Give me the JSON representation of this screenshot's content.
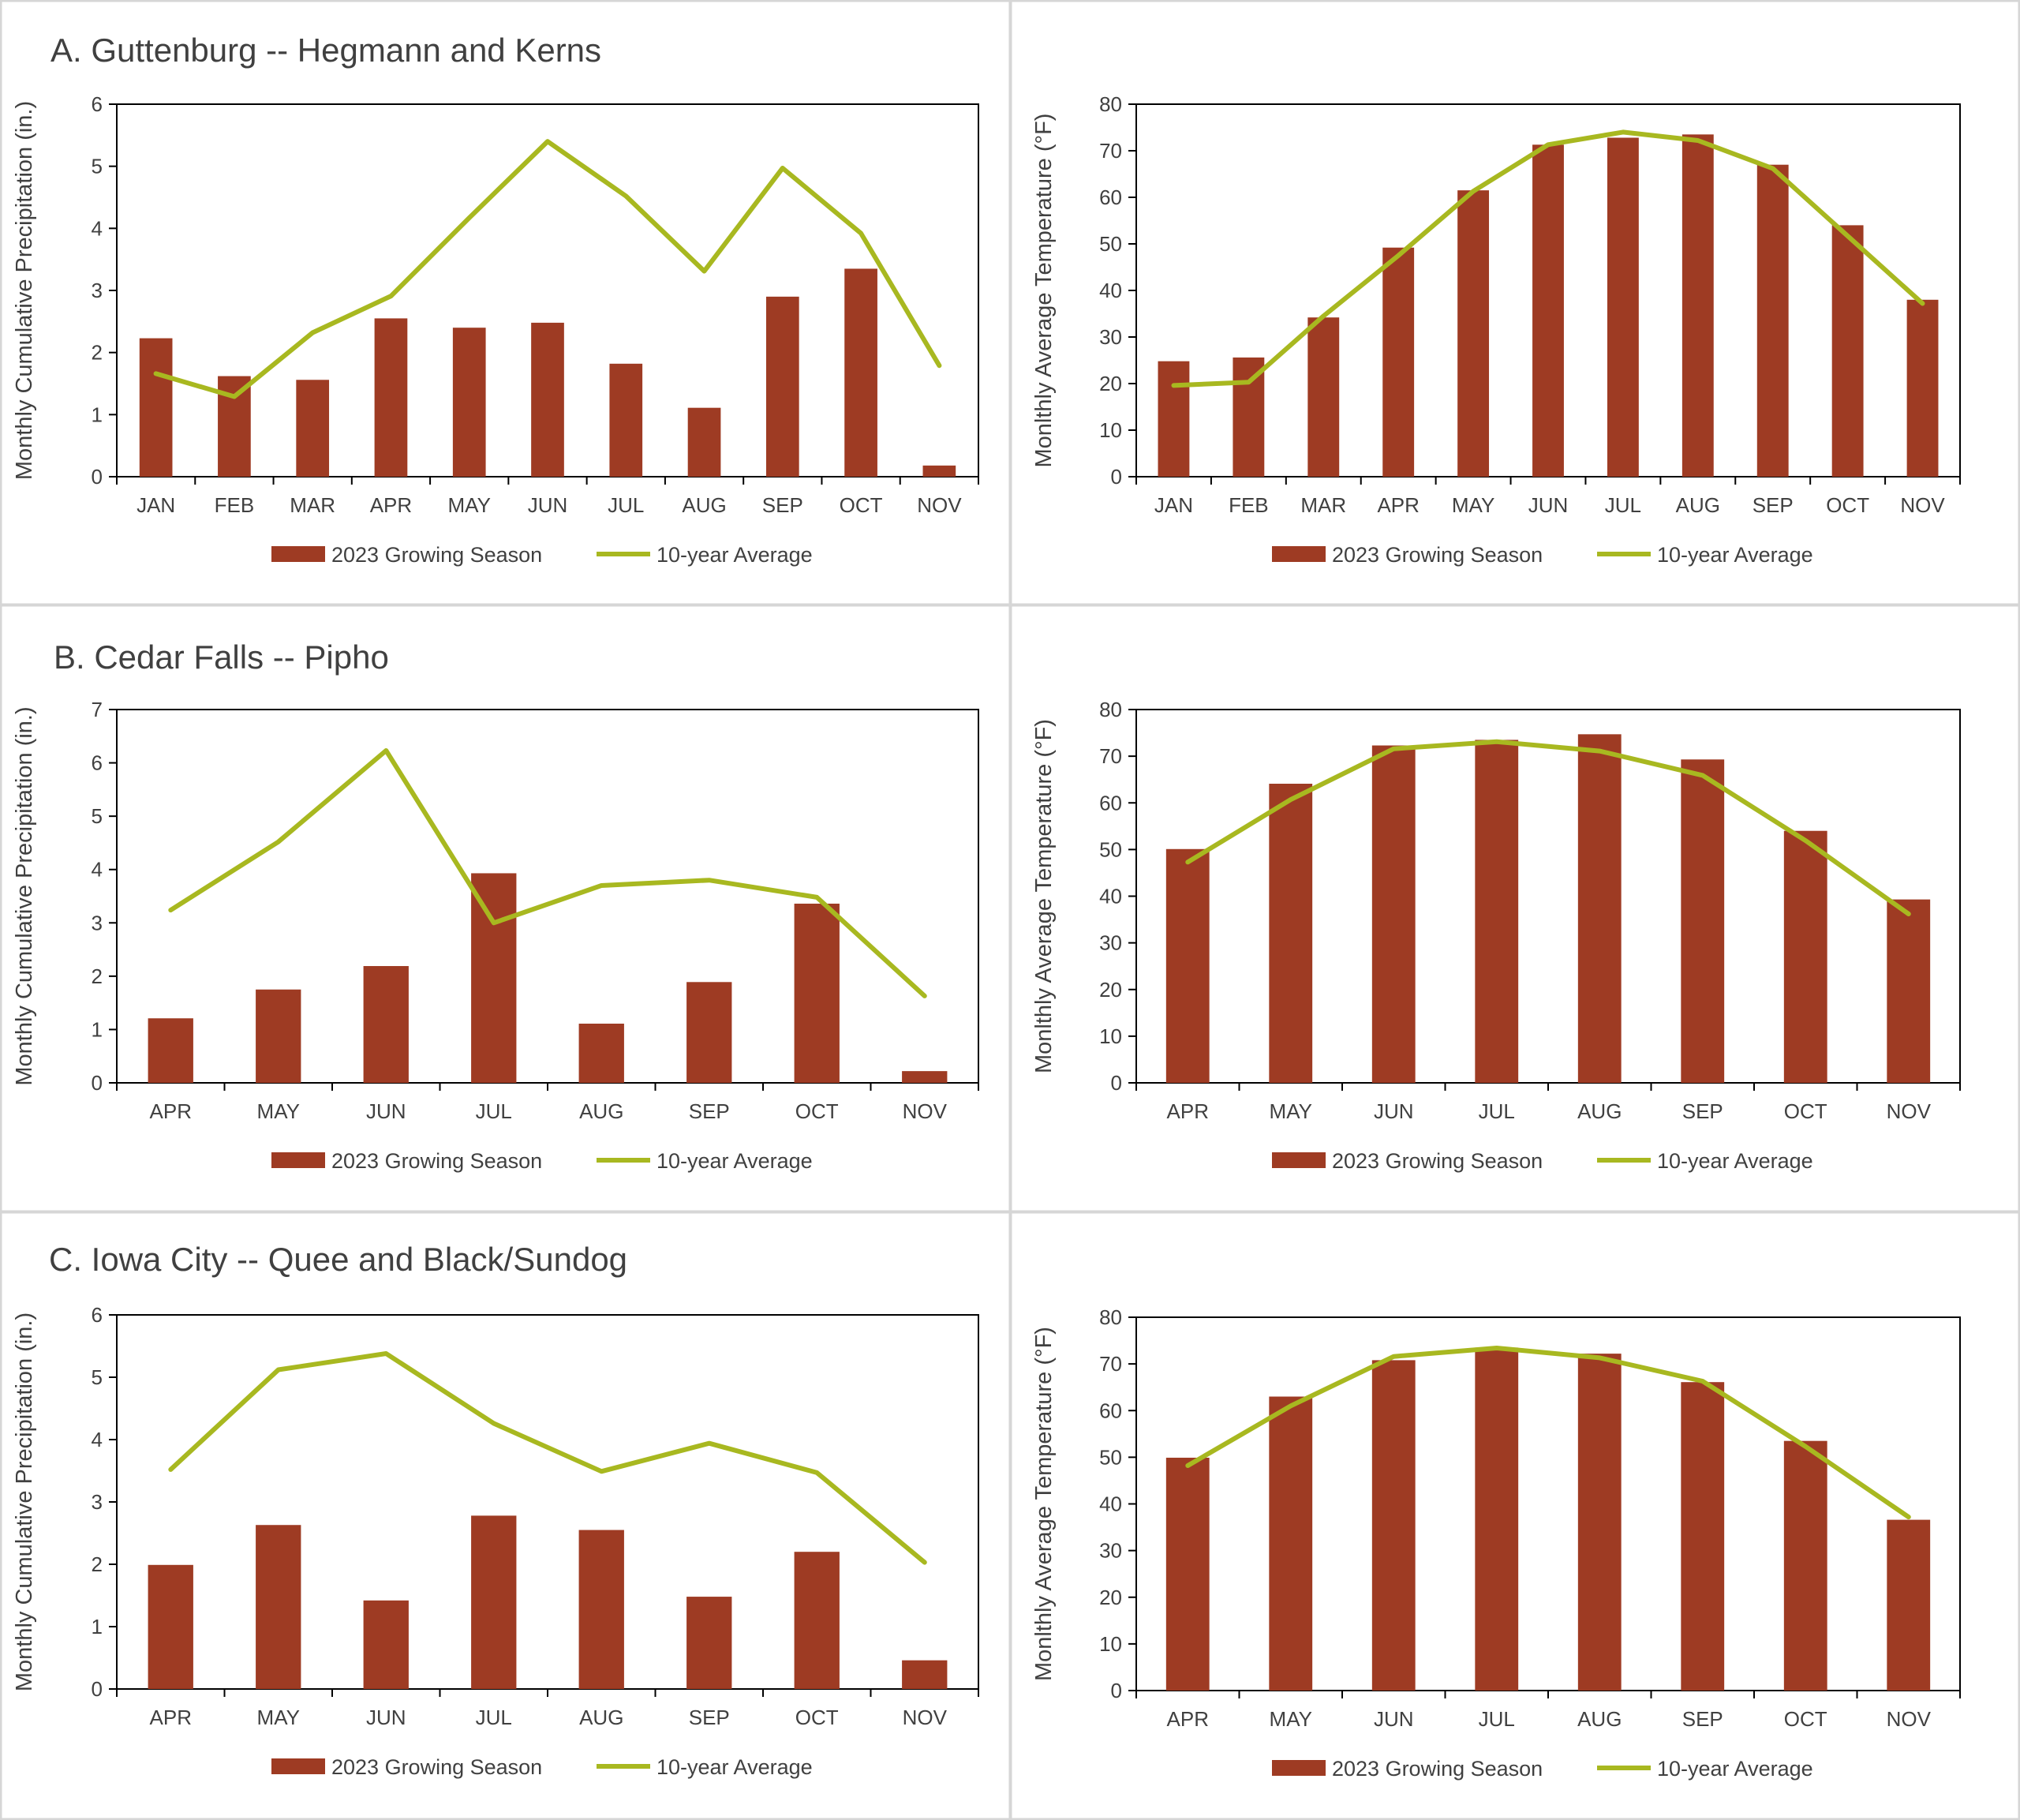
{
  "colors": {
    "bar": "#9e3b23",
    "line": "#a8b820",
    "panel_border": "#d6d6d6",
    "axis": "#000000",
    "text": "#404040"
  },
  "legend": {
    "bar_label": "2023 Growing Season",
    "line_label": "10-year Average"
  },
  "chart_data": [
    {
      "type": "bar",
      "title": "A. Guttenburg -- Hegmann and Kerns",
      "ylabel": "Monthly Cumulative Precipitation (in.)",
      "xlabel": "",
      "ylim": [
        0,
        6
      ],
      "yticks": [
        0,
        1,
        2,
        3,
        4,
        5,
        6
      ],
      "categories": [
        "JAN",
        "FEB",
        "MAR",
        "APR",
        "MAY",
        "JUN",
        "JUL",
        "AUG",
        "SEP",
        "OCT",
        "NOV"
      ],
      "series": [
        {
          "name": "2023 Growing Season",
          "kind": "bar",
          "values": [
            2.23,
            1.62,
            1.56,
            2.55,
            2.4,
            2.48,
            1.82,
            1.11,
            2.9,
            3.35,
            0.18
          ]
        },
        {
          "name": "10-year Average",
          "kind": "line",
          "values": [
            1.66,
            1.29,
            2.32,
            2.91,
            4.17,
            5.4,
            4.52,
            3.31,
            4.97,
            3.92,
            1.79
          ]
        }
      ],
      "legend_position": "bottom"
    },
    {
      "type": "bar",
      "title": "",
      "ylabel": "Monlthly Average Temperature (°F)",
      "xlabel": "",
      "ylim": [
        0,
        80
      ],
      "yticks": [
        0,
        10,
        20,
        30,
        40,
        50,
        60,
        70,
        80
      ],
      "categories": [
        "JAN",
        "FEB",
        "MAR",
        "APR",
        "MAY",
        "JUN",
        "JUL",
        "AUG",
        "SEP",
        "OCT",
        "NOV"
      ],
      "series": [
        {
          "name": "2023 Growing Season",
          "kind": "bar",
          "values": [
            24.8,
            25.6,
            34.2,
            49.2,
            61.5,
            71.3,
            72.8,
            73.5,
            67.0,
            54.0,
            38.0
          ]
        },
        {
          "name": "10-year Average",
          "kind": "line",
          "values": [
            19.6,
            20.3,
            34.5,
            47.5,
            61.3,
            71.3,
            74.0,
            72.2,
            66.2,
            51.7,
            37.2
          ]
        }
      ],
      "legend_position": "bottom"
    },
    {
      "type": "bar",
      "title": "B. Cedar Falls -- Pipho",
      "ylabel": "Monthly Cumulative Precipitation (in.)",
      "xlabel": "",
      "ylim": [
        0,
        7
      ],
      "yticks": [
        0,
        1,
        2,
        3,
        4,
        5,
        6,
        7
      ],
      "categories": [
        "APR",
        "MAY",
        "JUN",
        "JUL",
        "AUG",
        "SEP",
        "OCT",
        "NOV"
      ],
      "series": [
        {
          "name": "2023 Growing Season",
          "kind": "bar",
          "values": [
            1.21,
            1.75,
            2.19,
            3.93,
            1.11,
            1.89,
            3.36,
            0.22
          ]
        },
        {
          "name": "10-year Average",
          "kind": "line",
          "values": [
            3.24,
            4.52,
            6.23,
            3.0,
            3.7,
            3.8,
            3.48,
            1.63
          ]
        }
      ],
      "legend_position": "bottom"
    },
    {
      "type": "bar",
      "title": "",
      "ylabel": "Monlthly Average Temperature (°F)",
      "xlabel": "",
      "ylim": [
        0,
        80
      ],
      "yticks": [
        0,
        10,
        20,
        30,
        40,
        50,
        60,
        70,
        80
      ],
      "categories": [
        "APR",
        "MAY",
        "JUN",
        "JUL",
        "AUG",
        "SEP",
        "OCT",
        "NOV"
      ],
      "series": [
        {
          "name": "2023 Growing Season",
          "kind": "bar",
          "values": [
            50.1,
            64.1,
            72.3,
            73.5,
            74.7,
            69.3,
            54.0,
            39.3
          ]
        },
        {
          "name": "10-year Average",
          "kind": "line",
          "values": [
            47.3,
            60.7,
            71.6,
            73.1,
            71.1,
            65.9,
            51.9,
            36.2
          ]
        }
      ],
      "legend_position": "bottom"
    },
    {
      "type": "bar",
      "title": "C. Iowa City --  Quee and Black/Sundog",
      "ylabel": "Monthly Cumulative Precipitation (in.)",
      "xlabel": "",
      "ylim": [
        0,
        6
      ],
      "yticks": [
        0,
        1,
        2,
        3,
        4,
        5,
        6
      ],
      "categories": [
        "APR",
        "MAY",
        "JUN",
        "JUL",
        "AUG",
        "SEP",
        "OCT",
        "NOV"
      ],
      "series": [
        {
          "name": "2023 Growing Season",
          "kind": "bar",
          "values": [
            1.99,
            2.63,
            1.42,
            2.78,
            2.55,
            1.48,
            2.2,
            0.46
          ]
        },
        {
          "name": "10-year Average",
          "kind": "line",
          "values": [
            3.52,
            5.12,
            5.38,
            4.26,
            3.49,
            3.94,
            3.47,
            2.03
          ]
        }
      ],
      "legend_position": "bottom"
    },
    {
      "type": "bar",
      "title": "",
      "ylabel": "Monlthly Average Temperature (°F)",
      "xlabel": "",
      "ylim": [
        0,
        80
      ],
      "yticks": [
        0,
        10,
        20,
        30,
        40,
        50,
        60,
        70,
        80
      ],
      "categories": [
        "APR",
        "MAY",
        "JUN",
        "JUL",
        "AUG",
        "SEP",
        "OCT",
        "NOV"
      ],
      "series": [
        {
          "name": "2023 Growing Season",
          "kind": "bar",
          "values": [
            49.9,
            63.0,
            70.8,
            73.5,
            72.2,
            66.1,
            53.5,
            36.6
          ]
        },
        {
          "name": "10-year Average",
          "kind": "line",
          "values": [
            48.2,
            61.0,
            71.6,
            73.4,
            71.3,
            66.3,
            52.3,
            37.2
          ]
        }
      ],
      "legend_position": "bottom"
    }
  ]
}
